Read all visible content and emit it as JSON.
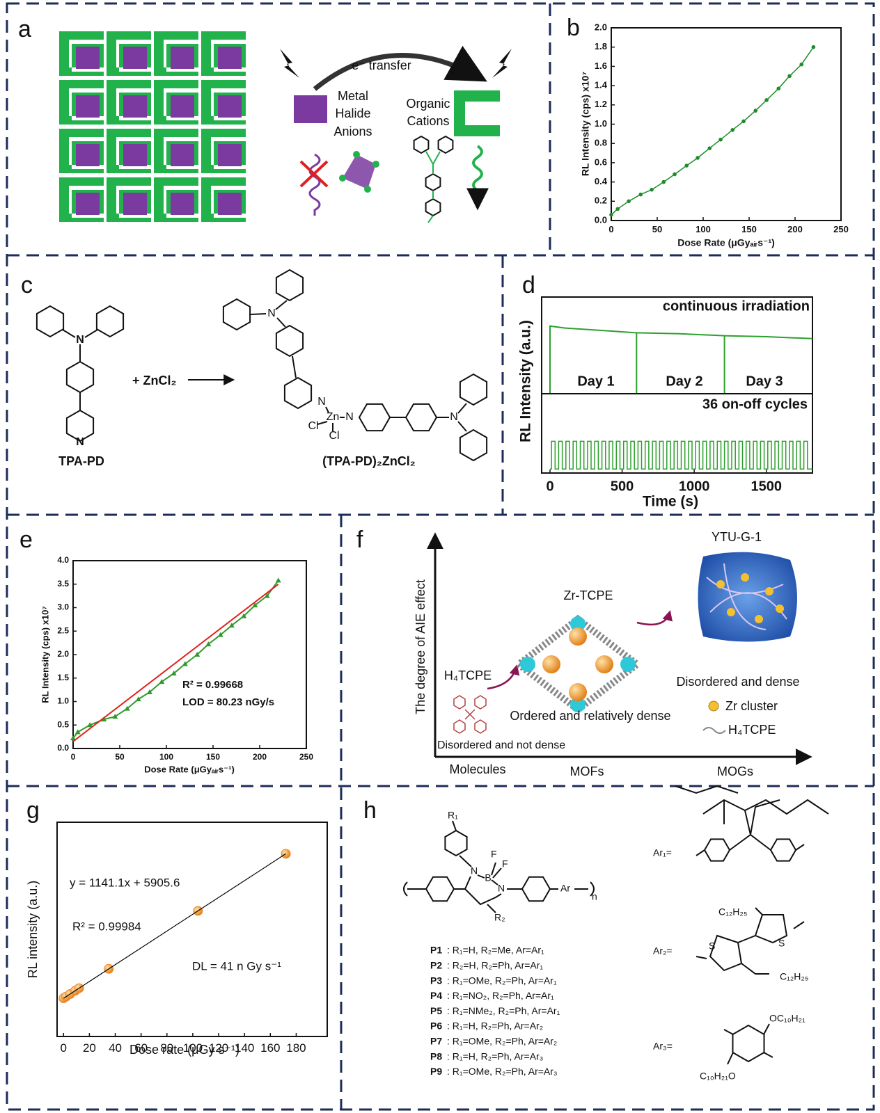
{
  "panel_labels": [
    "a",
    "b",
    "c",
    "d",
    "e",
    "f",
    "g",
    "h"
  ],
  "panel_a": {
    "transfer": "e⁻ transfer",
    "anions": [
      "Metal",
      "Halide",
      "Anions"
    ],
    "cations": [
      "Organic",
      "Cations"
    ]
  },
  "panel_c": {
    "reactant": "TPA-PD",
    "reagent": "+ ZnCl₂",
    "product": "(TPA-PD)₂ZnCl₂",
    "atoms": {
      "n": "N",
      "zn": "Zn",
      "cl": "Cl"
    }
  },
  "panel_f": {
    "y_axis": "The degree of AIE effect",
    "x_categories": [
      "Molecules",
      "MOFs",
      "MOGs"
    ],
    "molecule": "H₄TCPE",
    "molecule_note": "Disordered and not dense",
    "mof": "Zr-TCPE",
    "mof_note": "Ordered and relatively dense",
    "mog": "YTU-G-1",
    "mog_note": "Disordered and dense",
    "legend": [
      "Zr cluster",
      "H₄TCPE"
    ]
  },
  "panel_h": {
    "atoms": {
      "r1": "R₁",
      "r2": "R₂",
      "n": "N",
      "b": "B",
      "f": "F",
      "ar": "Ar",
      "n_sub": "n",
      "s": "S"
    },
    "polymers": [
      {
        "id": "P1",
        "desc": ": R₁=H, R₂=Me, Ar=Ar₁"
      },
      {
        "id": "P2",
        "desc": ": R₂=H, R₂=Ph, Ar=Ar₁"
      },
      {
        "id": "P3",
        "desc": ": R₁=OMe, R₂=Ph, Ar=Ar₁"
      },
      {
        "id": "P4",
        "desc": ": R₁=NO₂, R₂=Ph, Ar=Ar₁"
      },
      {
        "id": "P5",
        "desc": ": R₁=NMe₂, R₂=Ph, Ar=Ar₁"
      },
      {
        "id": "P6",
        "desc": ": R₁=H, R₂=Ph, Ar=Ar₂"
      },
      {
        "id": "P7",
        "desc": ": R₁=OMe, R₂=Ph, Ar=Ar₂"
      },
      {
        "id": "P8",
        "desc": ": R₁=H, R₂=Ph, Ar=Ar₃"
      },
      {
        "id": "P9",
        "desc": ": R₁=OMe, R₂=Ph, Ar=Ar₃"
      }
    ],
    "ar_labels": [
      "Ar₁=",
      "Ar₂=",
      "Ar₃="
    ],
    "substituents": [
      "C₁₂H₂₅",
      "C₁₂H₂₅",
      "OC₁₀H₂₁",
      "C₁₀H₂₁O"
    ]
  },
  "chart_data": [
    {
      "type": "line",
      "xlabel": "Dose Rate (μGyₐᵢᵣs⁻¹)",
      "ylabel": "RL Intensity (cps) x10⁷",
      "xlim": [
        0,
        250
      ],
      "xticks": [
        0,
        50,
        100,
        150,
        200,
        250
      ],
      "ylim": [
        0,
        2
      ],
      "yticks": [
        {
          "value": 0,
          "label": "0.0"
        },
        0.2,
        0.4,
        0.6,
        0.8,
        {
          "value": 1,
          "label": "1.0"
        },
        1.2,
        1.4,
        1.6,
        1.8,
        {
          "value": 2,
          "label": "2.0"
        }
      ],
      "series": [
        {
          "color": "#1e8c2a",
          "marker": "circle",
          "x": [
            0,
            7,
            19,
            32,
            44,
            57,
            69,
            82,
            94,
            107,
            119,
            132,
            144,
            157,
            169,
            182,
            194,
            207,
            220
          ],
          "values": [
            0.06,
            0.12,
            0.2,
            0.27,
            0.32,
            0.4,
            0.48,
            0.57,
            0.65,
            0.75,
            0.84,
            0.94,
            1.03,
            1.14,
            1.25,
            1.37,
            1.5,
            1.62,
            1.8
          ]
        }
      ]
    },
    {
      "type": "line",
      "title": "continuous irradiation",
      "annotations": [
        {
          "text": "Day 1"
        },
        {
          "text": "Day 2"
        },
        {
          "text": "Day 3"
        }
      ],
      "xlim": [
        -58,
        1820
      ],
      "ylim": [
        0,
        1
      ],
      "series": [
        {
          "color": "#2ca02c",
          "x": [
            0,
            0,
            100,
            300,
            600,
            600,
            600,
            900,
            1210,
            1210,
            1210,
            1500,
            1820
          ],
          "values": [
            0,
            0.7,
            0.68,
            0.66,
            0.63,
            0,
            0.63,
            0.62,
            0.6,
            0,
            0.6,
            0.59,
            0.57
          ]
        }
      ]
    },
    {
      "type": "step",
      "title": "36 on-off cycles",
      "xlabel": "Time (s)",
      "ylabel": "RL Intensity (a.u.)",
      "xlim": [
        -58,
        1820
      ],
      "xticks": [
        0,
        500,
        1000,
        1500
      ],
      "ylim": [
        0,
        1
      ],
      "series": [
        {
          "color": "#2ca02c",
          "x": [
            0,
            10,
            35,
            60,
            85,
            110,
            135,
            160,
            185,
            210,
            235,
            260,
            285,
            310,
            335,
            360,
            385,
            410,
            435,
            460,
            485,
            510,
            535,
            560,
            585,
            610,
            635,
            660,
            685,
            710,
            735,
            760,
            785,
            810,
            835,
            860,
            885,
            910,
            935,
            960,
            985,
            1010,
            1035,
            1060,
            1085,
            1110,
            1135,
            1160,
            1185,
            1210,
            1235,
            1260,
            1285,
            1310,
            1335,
            1360,
            1385,
            1410,
            1435,
            1460,
            1485,
            1510,
            1535,
            1560,
            1585,
            1610,
            1635,
            1660,
            1685,
            1710,
            1735,
            1760,
            1785
          ],
          "values": [
            0.05,
            0.4,
            0.05,
            0.4,
            0.05,
            0.4,
            0.05,
            0.4,
            0.05,
            0.4,
            0.05,
            0.4,
            0.05,
            0.4,
            0.05,
            0.4,
            0.05,
            0.4,
            0.05,
            0.4,
            0.05,
            0.4,
            0.05,
            0.4,
            0.05,
            0.4,
            0.05,
            0.4,
            0.05,
            0.4,
            0.05,
            0.4,
            0.05,
            0.4,
            0.05,
            0.4,
            0.05,
            0.4,
            0.05,
            0.4,
            0.05,
            0.4,
            0.05,
            0.4,
            0.05,
            0.4,
            0.05,
            0.4,
            0.05,
            0.4,
            0.05,
            0.4,
            0.05,
            0.4,
            0.05,
            0.4,
            0.05,
            0.4,
            0.05,
            0.4,
            0.05,
            0.4,
            0.05,
            0.4,
            0.05,
            0.4,
            0.05,
            0.4,
            0.05,
            0.4,
            0.05,
            0.4,
            0.05
          ]
        }
      ]
    },
    {
      "type": "line",
      "xlabel": "Dose Rate (μGyₐᵢᵣs⁻¹)",
      "ylabel": "RL Intensity (cps) x10⁷",
      "xlim": [
        0,
        250
      ],
      "xticks": [
        0,
        50,
        100,
        150,
        200,
        250
      ],
      "ylim": [
        0,
        4
      ],
      "yticks": [
        {
          "value": 0,
          "label": "0.0"
        },
        0.5,
        {
          "value": 1,
          "label": "1.0"
        },
        1.5,
        {
          "value": 2,
          "label": "2.0"
        },
        2.5,
        {
          "value": 3,
          "label": "3.0"
        },
        3.5,
        {
          "value": 4,
          "label": "4.0"
        }
      ],
      "annotations": [
        {
          "text": "R² = 0.99668",
          "color": "#e0201c"
        },
        {
          "text": "LOD = 80.23 nGy/s",
          "color": "#2f9a2a"
        }
      ],
      "series": [
        {
          "color": "#2f9a2a",
          "marker": "triangle",
          "x": [
            0,
            5,
            18,
            33,
            45,
            58,
            70,
            82,
            95,
            108,
            120,
            133,
            145,
            158,
            170,
            183,
            195,
            208,
            220
          ],
          "values": [
            0.22,
            0.35,
            0.5,
            0.62,
            0.68,
            0.85,
            1.05,
            1.2,
            1.42,
            1.6,
            1.8,
            2.0,
            2.22,
            2.42,
            2.62,
            2.82,
            3.05,
            3.25,
            3.58
          ]
        },
        {
          "color": "#e0201c",
          "x": [
            0,
            220
          ],
          "values": [
            0.15,
            3.5
          ]
        }
      ]
    },
    {
      "type": "scatter",
      "xlabel": "Dose rate (μGy s⁻¹)",
      "ylabel": "RL intensity (a.u.)",
      "xlim": [
        -5,
        204
      ],
      "xticks": [
        0,
        20,
        40,
        60,
        80,
        100,
        120,
        140,
        160,
        180
      ],
      "ylim": [
        -46000,
        245000
      ],
      "annotations": [
        {
          "text": "y = 1141.1x + 5905.6"
        },
        {
          "text": "R² = 0.99984"
        },
        {
          "text": "DL = 41 n Gy s⁻¹"
        }
      ],
      "series": [
        {
          "color": "#f08a32",
          "x": [
            0,
            2,
            5,
            9,
            12,
            35,
            104,
            172
          ],
          "values": [
            5906,
            8188,
            11611,
            16176,
            19599,
            45844,
            124580,
            202175
          ]
        },
        {
          "type": "line",
          "color": "#000000",
          "x": [
            0,
            172
          ],
          "values": [
            5906,
            202175
          ]
        }
      ]
    }
  ]
}
